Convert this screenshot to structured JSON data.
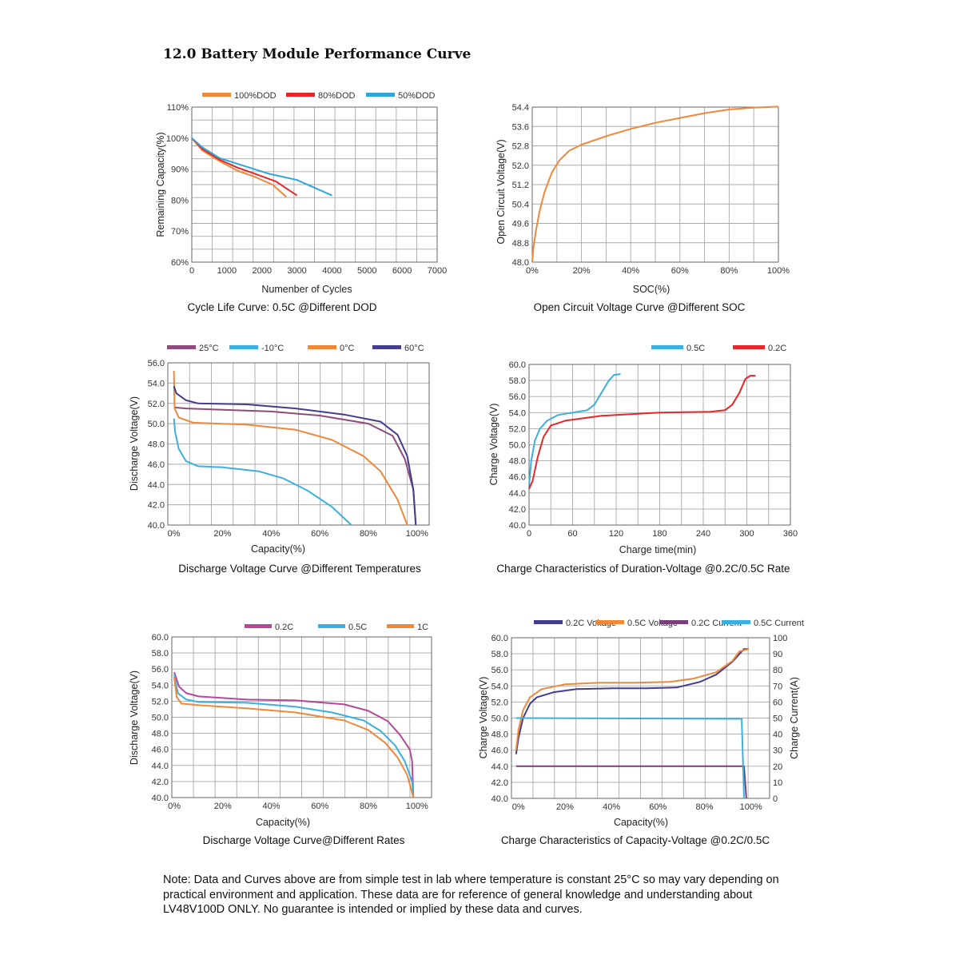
{
  "title": "12.0 Battery Module Performance Curve",
  "note": "Note: Data and Curves above are from simple test in lab where temperature is constant 25°C so may vary depending on practical environment and application. These data are for reference of general knowledge and understanding about LV48V100D ONLY. No guarantee is intended or implied by these data and curves.",
  "chart_data": [
    {
      "type": "line",
      "caption": "Cycle Life Curve: 0.5C @Different DOD",
      "xlabel": "Numenber of Cycles",
      "ylabel": "Remaining Capacity(%)",
      "xlim": [
        0,
        7000
      ],
      "ylim": [
        60,
        110
      ],
      "xticks": [
        "0",
        "1000",
        "2000",
        "3000",
        "4000",
        "5000",
        "6000",
        "7000"
      ],
      "yticks": [
        "60%",
        "70%",
        "80%",
        "90%",
        "100%",
        "110%"
      ],
      "grid": true,
      "legend": "top",
      "series": [
        {
          "name": "100%DOD",
          "color": "#f0883a",
          "points": [
            [
              0,
              100
            ],
            [
              300,
              96
            ],
            [
              800,
              92.5
            ],
            [
              1300,
              89.5
            ],
            [
              1800,
              87.5
            ],
            [
              2300,
              85
            ],
            [
              2700,
              81
            ]
          ]
        },
        {
          "name": "80%DOD",
          "color": "#e8262a",
          "points": [
            [
              0,
              100
            ],
            [
              300,
              96.5
            ],
            [
              800,
              93
            ],
            [
              1300,
              90.5
            ],
            [
              1800,
              88.5
            ],
            [
              2400,
              86
            ],
            [
              3000,
              81.5
            ]
          ]
        },
        {
          "name": "50%DOD",
          "color": "#2fa6d9",
          "points": [
            [
              0,
              100
            ],
            [
              300,
              97
            ],
            [
              800,
              93.5
            ],
            [
              1500,
              91
            ],
            [
              2200,
              88.5
            ],
            [
              3000,
              86.5
            ],
            [
              3600,
              83.5
            ],
            [
              4000,
              81.5
            ]
          ]
        }
      ]
    },
    {
      "type": "line",
      "caption": "Open Circuit Voltage Curve @Different SOC",
      "xlabel": "SOC(%)",
      "ylabel": "Open Circuit Voltage(V)",
      "xlim": [
        0,
        100
      ],
      "ylim": [
        48.0,
        54.4
      ],
      "xticks": [
        "0%",
        "20%",
        "40%",
        "60%",
        "80%",
        "100%"
      ],
      "yticks": [
        "48.0",
        "48.8",
        "49.6",
        "50.4",
        "51.2",
        "52.0",
        "52.8",
        "53.6",
        "54.4"
      ],
      "grid": true,
      "series": [
        {
          "name": "",
          "color": "#f0883a",
          "points": [
            [
              0,
              48.0
            ],
            [
              0.5,
              48.6
            ],
            [
              1.5,
              49.3
            ],
            [
              3,
              50.1
            ],
            [
              5,
              50.9
            ],
            [
              8,
              51.7
            ],
            [
              11,
              52.2
            ],
            [
              15,
              52.6
            ],
            [
              20,
              52.85
            ],
            [
              30,
              53.2
            ],
            [
              40,
              53.5
            ],
            [
              50,
              53.75
            ],
            [
              60,
              53.95
            ],
            [
              70,
              54.15
            ],
            [
              80,
              54.3
            ],
            [
              90,
              54.38
            ],
            [
              100,
              54.42
            ]
          ]
        }
      ]
    },
    {
      "type": "line",
      "caption": "Discharge Voltage Curve @Different Temperatures",
      "xlabel": "Capacity(%)",
      "ylabel": "Discharge Voltage(V)",
      "xlim": [
        -2.5,
        105
      ],
      "ylim": [
        40,
        56
      ],
      "xticks": [
        "0%",
        "20%",
        "40%",
        "60%",
        "80%",
        "100%"
      ],
      "yticks": [
        "40.0",
        "42.0",
        "44.0",
        "46.0",
        "48.0",
        "50.0",
        "52.0",
        "54.0",
        "56.0"
      ],
      "grid": true,
      "legend": "top",
      "series": [
        {
          "name": "25°C",
          "color": "#8e4a7a",
          "points": [
            [
              0,
              51.6
            ],
            [
              5,
              51.5
            ],
            [
              40,
              51.2
            ],
            [
              60,
              50.8
            ],
            [
              80,
              50.0
            ],
            [
              90,
              48.8
            ],
            [
              95,
              46.5
            ],
            [
              98.5,
              43.5
            ],
            [
              99.5,
              40.0
            ]
          ]
        },
        {
          "name": "-10°C",
          "color": "#3bb0e0",
          "points": [
            [
              0,
              50.5
            ],
            [
              0.5,
              49.2
            ],
            [
              2,
              47.5
            ],
            [
              5,
              46.3
            ],
            [
              10,
              45.8
            ],
            [
              20,
              45.7
            ],
            [
              35,
              45.3
            ],
            [
              45,
              44.6
            ],
            [
              55,
              43.4
            ],
            [
              65,
              41.8
            ],
            [
              73,
              40.0
            ]
          ]
        },
        {
          "name": "0°C",
          "color": "#f0883a",
          "points": [
            [
              0,
              55.2
            ],
            [
              0.3,
              51.5
            ],
            [
              2,
              50.6
            ],
            [
              8,
              50.1
            ],
            [
              30,
              49.9
            ],
            [
              50,
              49.4
            ],
            [
              65,
              48.4
            ],
            [
              78,
              46.8
            ],
            [
              85,
              45.3
            ],
            [
              92,
              42.5
            ],
            [
              96,
              40.0
            ]
          ]
        },
        {
          "name": "60°C",
          "color": "#443d8f",
          "points": [
            [
              0,
              53.7
            ],
            [
              1,
              53.0
            ],
            [
              5,
              52.3
            ],
            [
              10,
              52.0
            ],
            [
              30,
              51.9
            ],
            [
              50,
              51.5
            ],
            [
              70,
              50.9
            ],
            [
              85,
              50.2
            ],
            [
              92,
              48.9
            ],
            [
              96,
              46.8
            ],
            [
              98.5,
              43.5
            ],
            [
              99.5,
              40.0
            ]
          ]
        }
      ]
    },
    {
      "type": "line",
      "caption": "Charge Characteristics of Duration-Voltage @0.2C/0.5C Rate",
      "xlabel": "Charge time(min)",
      "ylabel": "Charge Voltage(V)",
      "xlim": [
        0,
        360
      ],
      "ylim": [
        40,
        60
      ],
      "xticks": [
        "0",
        "60",
        "120",
        "180",
        "240",
        "300",
        "360"
      ],
      "yticks": [
        "40.0",
        "42.0",
        "44.0",
        "46.0",
        "48.0",
        "50.0",
        "52.0",
        "54.0",
        "56.0",
        "58.0",
        "60.0"
      ],
      "grid": true,
      "legend": "top-right",
      "series": [
        {
          "name": "0.5C",
          "color": "#3bb0e0",
          "points": [
            [
              0,
              44.8
            ],
            [
              3,
              48.0
            ],
            [
              8,
              50.5
            ],
            [
              15,
              52.0
            ],
            [
              25,
              53.0
            ],
            [
              40,
              53.7
            ],
            [
              60,
              54.0
            ],
            [
              80,
              54.3
            ],
            [
              90,
              55.0
            ],
            [
              100,
              56.5
            ],
            [
              110,
              58.0
            ],
            [
              117,
              58.7
            ],
            [
              126,
              58.8
            ]
          ]
        },
        {
          "name": "0.2C",
          "color": "#e8262a",
          "points": [
            [
              0,
              44.5
            ],
            [
              5,
              45.5
            ],
            [
              12,
              48.5
            ],
            [
              20,
              51.0
            ],
            [
              30,
              52.4
            ],
            [
              50,
              53.0
            ],
            [
              100,
              53.6
            ],
            [
              180,
              54.0
            ],
            [
              250,
              54.1
            ],
            [
              270,
              54.3
            ],
            [
              280,
              55.0
            ],
            [
              290,
              56.5
            ],
            [
              298,
              58.2
            ],
            [
              305,
              58.6
            ],
            [
              312,
              58.6
            ]
          ]
        }
      ]
    },
    {
      "type": "line",
      "caption": "Discharge Voltage Curve@Different Rates",
      "xlabel": "Capacity(%)",
      "ylabel": "Discharge Voltage(V)",
      "xlim": [
        -1,
        106
      ],
      "ylim": [
        40,
        60
      ],
      "xticks": [
        "0%",
        "20%",
        "40%",
        "60%",
        "80%",
        "100%"
      ],
      "yticks": [
        "40.0",
        "42.0",
        "44.0",
        "46.0",
        "48.0",
        "50.0",
        "52.0",
        "54.0",
        "56.0",
        "58.0",
        "60.0"
      ],
      "grid": true,
      "legend": "top-right",
      "series": [
        {
          "name": "0.2C",
          "color": "#b5489a",
          "points": [
            [
              0,
              55.6
            ],
            [
              2,
              53.8
            ],
            [
              5,
              53.0
            ],
            [
              10,
              52.6
            ],
            [
              30,
              52.2
            ],
            [
              50,
              52.1
            ],
            [
              70,
              51.6
            ],
            [
              80,
              50.8
            ],
            [
              88,
              49.5
            ],
            [
              93,
              47.8
            ],
            [
              97,
              46.0
            ],
            [
              98,
              44.5
            ],
            [
              98.5,
              40.0
            ]
          ]
        },
        {
          "name": "0.5C",
          "color": "#3bb0e0",
          "points": [
            [
              0,
              55.3
            ],
            [
              1.5,
              53.0
            ],
            [
              5,
              52.2
            ],
            [
              10,
              51.9
            ],
            [
              30,
              51.8
            ],
            [
              50,
              51.3
            ],
            [
              65,
              50.6
            ],
            [
              78,
              49.6
            ],
            [
              85,
              48.3
            ],
            [
              91,
              46.5
            ],
            [
              95,
              44.5
            ],
            [
              98,
              42.0
            ],
            [
              98.5,
              40.0
            ]
          ]
        },
        {
          "name": "1C",
          "color": "#f0883a",
          "points": [
            [
              0,
              55.0
            ],
            [
              1,
              52.5
            ],
            [
              3,
              51.7
            ],
            [
              10,
              51.5
            ],
            [
              30,
              51.1
            ],
            [
              50,
              50.6
            ],
            [
              70,
              49.6
            ],
            [
              80,
              48.4
            ],
            [
              87,
              46.8
            ],
            [
              92,
              45.0
            ],
            [
              96,
              42.8
            ],
            [
              98.5,
              40.0
            ]
          ]
        }
      ]
    },
    {
      "type": "line",
      "caption": "Charge Characteristics of Capacity-Voltage @0.2C/0.5C",
      "xlabel": "Capacity(%)",
      "ylabel": "Charge Voltage(V)",
      "y2label": "Charge Current(A)",
      "xlim": [
        -3,
        108
      ],
      "ylim": [
        40,
        60
      ],
      "y2lim": [
        0,
        100
      ],
      "xticks": [
        "0%",
        "20%",
        "40%",
        "60%",
        "80%",
        "100%"
      ],
      "yticks": [
        "40.0",
        "42.0",
        "44.0",
        "46.0",
        "48.0",
        "50.0",
        "52.0",
        "54.0",
        "56.0",
        "58.0",
        "60.0"
      ],
      "y2ticks": [
        "0",
        "10",
        "20",
        "30",
        "40",
        "50",
        "60",
        "70",
        "80",
        "90",
        "100"
      ],
      "grid": true,
      "legend": "top",
      "series": [
        {
          "name": "0.2C Voltage",
          "color": "#443d8f",
          "axis": "left",
          "points": [
            [
              -1,
              45.5
            ],
            [
              0,
              47.5
            ],
            [
              2,
              50.0
            ],
            [
              5,
              51.8
            ],
            [
              8,
              52.6
            ],
            [
              15,
              53.2
            ],
            [
              25,
              53.6
            ],
            [
              40,
              53.7
            ],
            [
              55,
              53.7
            ],
            [
              68,
              53.8
            ],
            [
              78,
              54.5
            ],
            [
              85,
              55.4
            ],
            [
              92,
              57.0
            ],
            [
              97,
              58.6
            ],
            [
              99,
              58.6
            ]
          ]
        },
        {
          "name": "0.5C Voltage",
          "color": "#f0883a",
          "axis": "left",
          "points": [
            [
              -1,
              46.0
            ],
            [
              0,
              48.5
            ],
            [
              2,
              51.0
            ],
            [
              5,
              52.6
            ],
            [
              10,
              53.6
            ],
            [
              20,
              54.2
            ],
            [
              35,
              54.4
            ],
            [
              50,
              54.4
            ],
            [
              65,
              54.5
            ],
            [
              75,
              54.9
            ],
            [
              85,
              55.7
            ],
            [
              92,
              57.1
            ],
            [
              95,
              58.3
            ],
            [
              99,
              58.6
            ]
          ]
        },
        {
          "name": "0.2C Current",
          "color": "#7a3f79",
          "axis": "right",
          "points": [
            [
              -1,
              20
            ],
            [
              97,
              20
            ],
            [
              98,
              0
            ]
          ]
        },
        {
          "name": "0.5C Current",
          "color": "#3bb0e0",
          "axis": "right",
          "points": [
            [
              -1,
              50
            ],
            [
              96,
              49.5
            ],
            [
              97,
              0
            ]
          ]
        }
      ]
    }
  ]
}
